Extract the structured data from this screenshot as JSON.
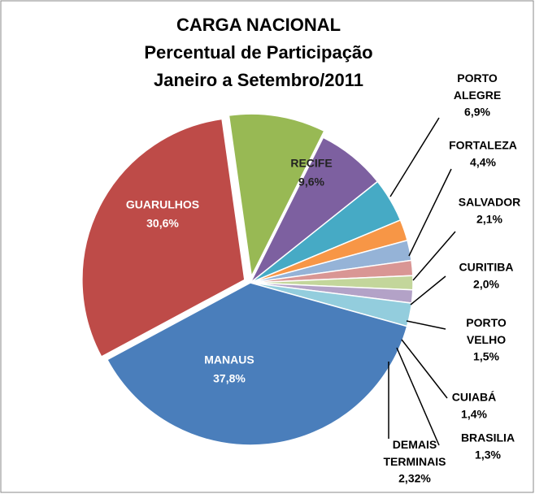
{
  "chart_data": {
    "type": "pie",
    "title": [
      "CARGA NACIONAL",
      "Percentual de Participação",
      "Janeiro a Setembro/2011"
    ],
    "categories": [
      "RECIFE",
      "PORTO ALEGRE",
      "FORTALEZA",
      "SALVADOR",
      "CURITIBA",
      "PORTO VELHO",
      "CUIABÁ",
      "BRASILIA",
      "DEMAIS TERMINAIS",
      "MANAUS",
      "GUARULHOS"
    ],
    "values": [
      9.6,
      6.9,
      4.4,
      2.1,
      2.0,
      1.5,
      1.4,
      1.3,
      2.32,
      37.8,
      30.6
    ],
    "value_labels": [
      "9,6%",
      "6,9%",
      "4,4%",
      "2,1%",
      "2,0%",
      "1,5%",
      "1,4%",
      "1,3%",
      "2,32%",
      "37,8%",
      "30,6%"
    ],
    "colors": [
      "#98b954",
      "#7d60a0",
      "#46aac5",
      "#f79646",
      "#95b3d7",
      "#d99694",
      "#c3d69b",
      "#b3a2c7",
      "#93cddd",
      "#4a7ebb",
      "#be4b48"
    ]
  }
}
